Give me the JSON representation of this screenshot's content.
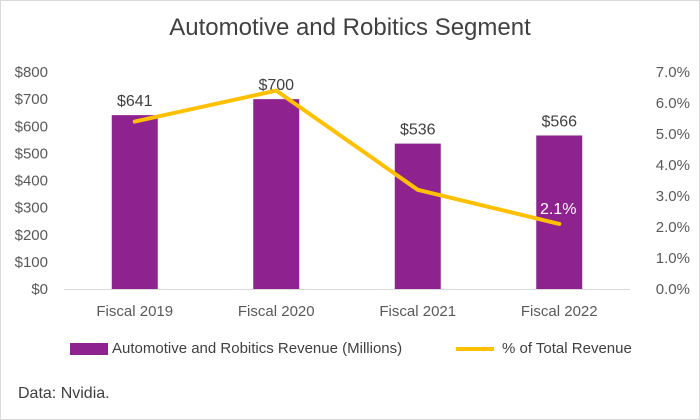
{
  "chart_data": {
    "type": "bar",
    "title": "Automotive and Robitics Segment",
    "categories": [
      "Fiscal 2019",
      "Fiscal 2020",
      "Fiscal 2021",
      "Fiscal 2022"
    ],
    "series": [
      {
        "name": "Automotive and Robitics Revenue (Millions)",
        "type": "bar",
        "axis": "left",
        "values": [
          641,
          700,
          536,
          566
        ],
        "labels": [
          "$641",
          "$700",
          "$536",
          "$566"
        ]
      },
      {
        "name": "% of Total Revenue",
        "type": "line",
        "axis": "right",
        "values": [
          5.4,
          6.4,
          3.2,
          2.1
        ],
        "labels": [
          "",
          "",
          "",
          "2.1%"
        ]
      }
    ],
    "y_left": {
      "min": 0,
      "max": 800,
      "ticks": [
        "$800",
        "$700",
        "$600",
        "$500",
        "$400",
        "$300",
        "$200",
        "$100",
        "$0"
      ]
    },
    "y_right": {
      "min": 0,
      "max": 7,
      "ticks": [
        "7.0%",
        "6.0%",
        "5.0%",
        "4.0%",
        "3.0%",
        "2.0%",
        "1.0%",
        "0.0%"
      ]
    },
    "grid": false,
    "legend_position": "bottom"
  },
  "colors": {
    "bar": "#8e2390",
    "line": "#ffc000"
  },
  "source": "Data: Nvidia."
}
